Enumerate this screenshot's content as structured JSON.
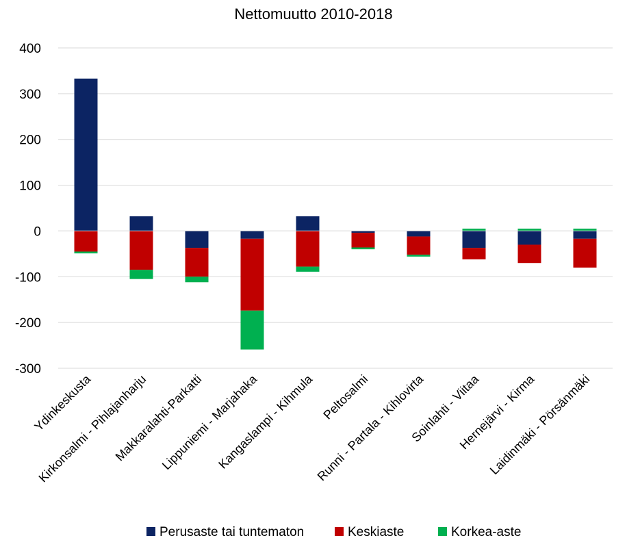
{
  "chart_data": {
    "type": "bar",
    "stacked": true,
    "title": "Nettomuutto 2010-2018",
    "xlabel": "",
    "ylabel": "",
    "ylim": [
      -300,
      400
    ],
    "yticks": [
      400,
      300,
      200,
      100,
      0,
      -100,
      -200,
      -300
    ],
    "grid": true,
    "legend_position": "bottom",
    "categories": [
      "Ydinkeskusta",
      "Kirkonsalmi - Pihlajanharju",
      "Makkaralahti-Parkatti",
      "Lippuniemi - Marjahaka",
      "Kangaslampi - Kihmula",
      "Peltosalmi",
      "Runni - Partala - Kihlovirta",
      "Soinlahti - Viitaa",
      "Hernejärvi - Kirma",
      "Laidinmäki - Pörsänmäki"
    ],
    "series": [
      {
        "name": "Perusaste tai tuntematon",
        "color": "#0c2463",
        "values": [
          333,
          32,
          -37,
          -17,
          32,
          -4,
          -12,
          -37,
          -30,
          -17
        ]
      },
      {
        "name": "Keskiaste",
        "color": "#c00000",
        "values": [
          -45,
          -85,
          -63,
          -157,
          -78,
          -32,
          -40,
          -25,
          -40,
          -63
        ]
      },
      {
        "name": "Korkea-aste",
        "color": "#00b050",
        "values": [
          -4,
          -20,
          -12,
          -85,
          -11,
          -4,
          -4,
          5,
          5,
          5
        ]
      }
    ]
  }
}
